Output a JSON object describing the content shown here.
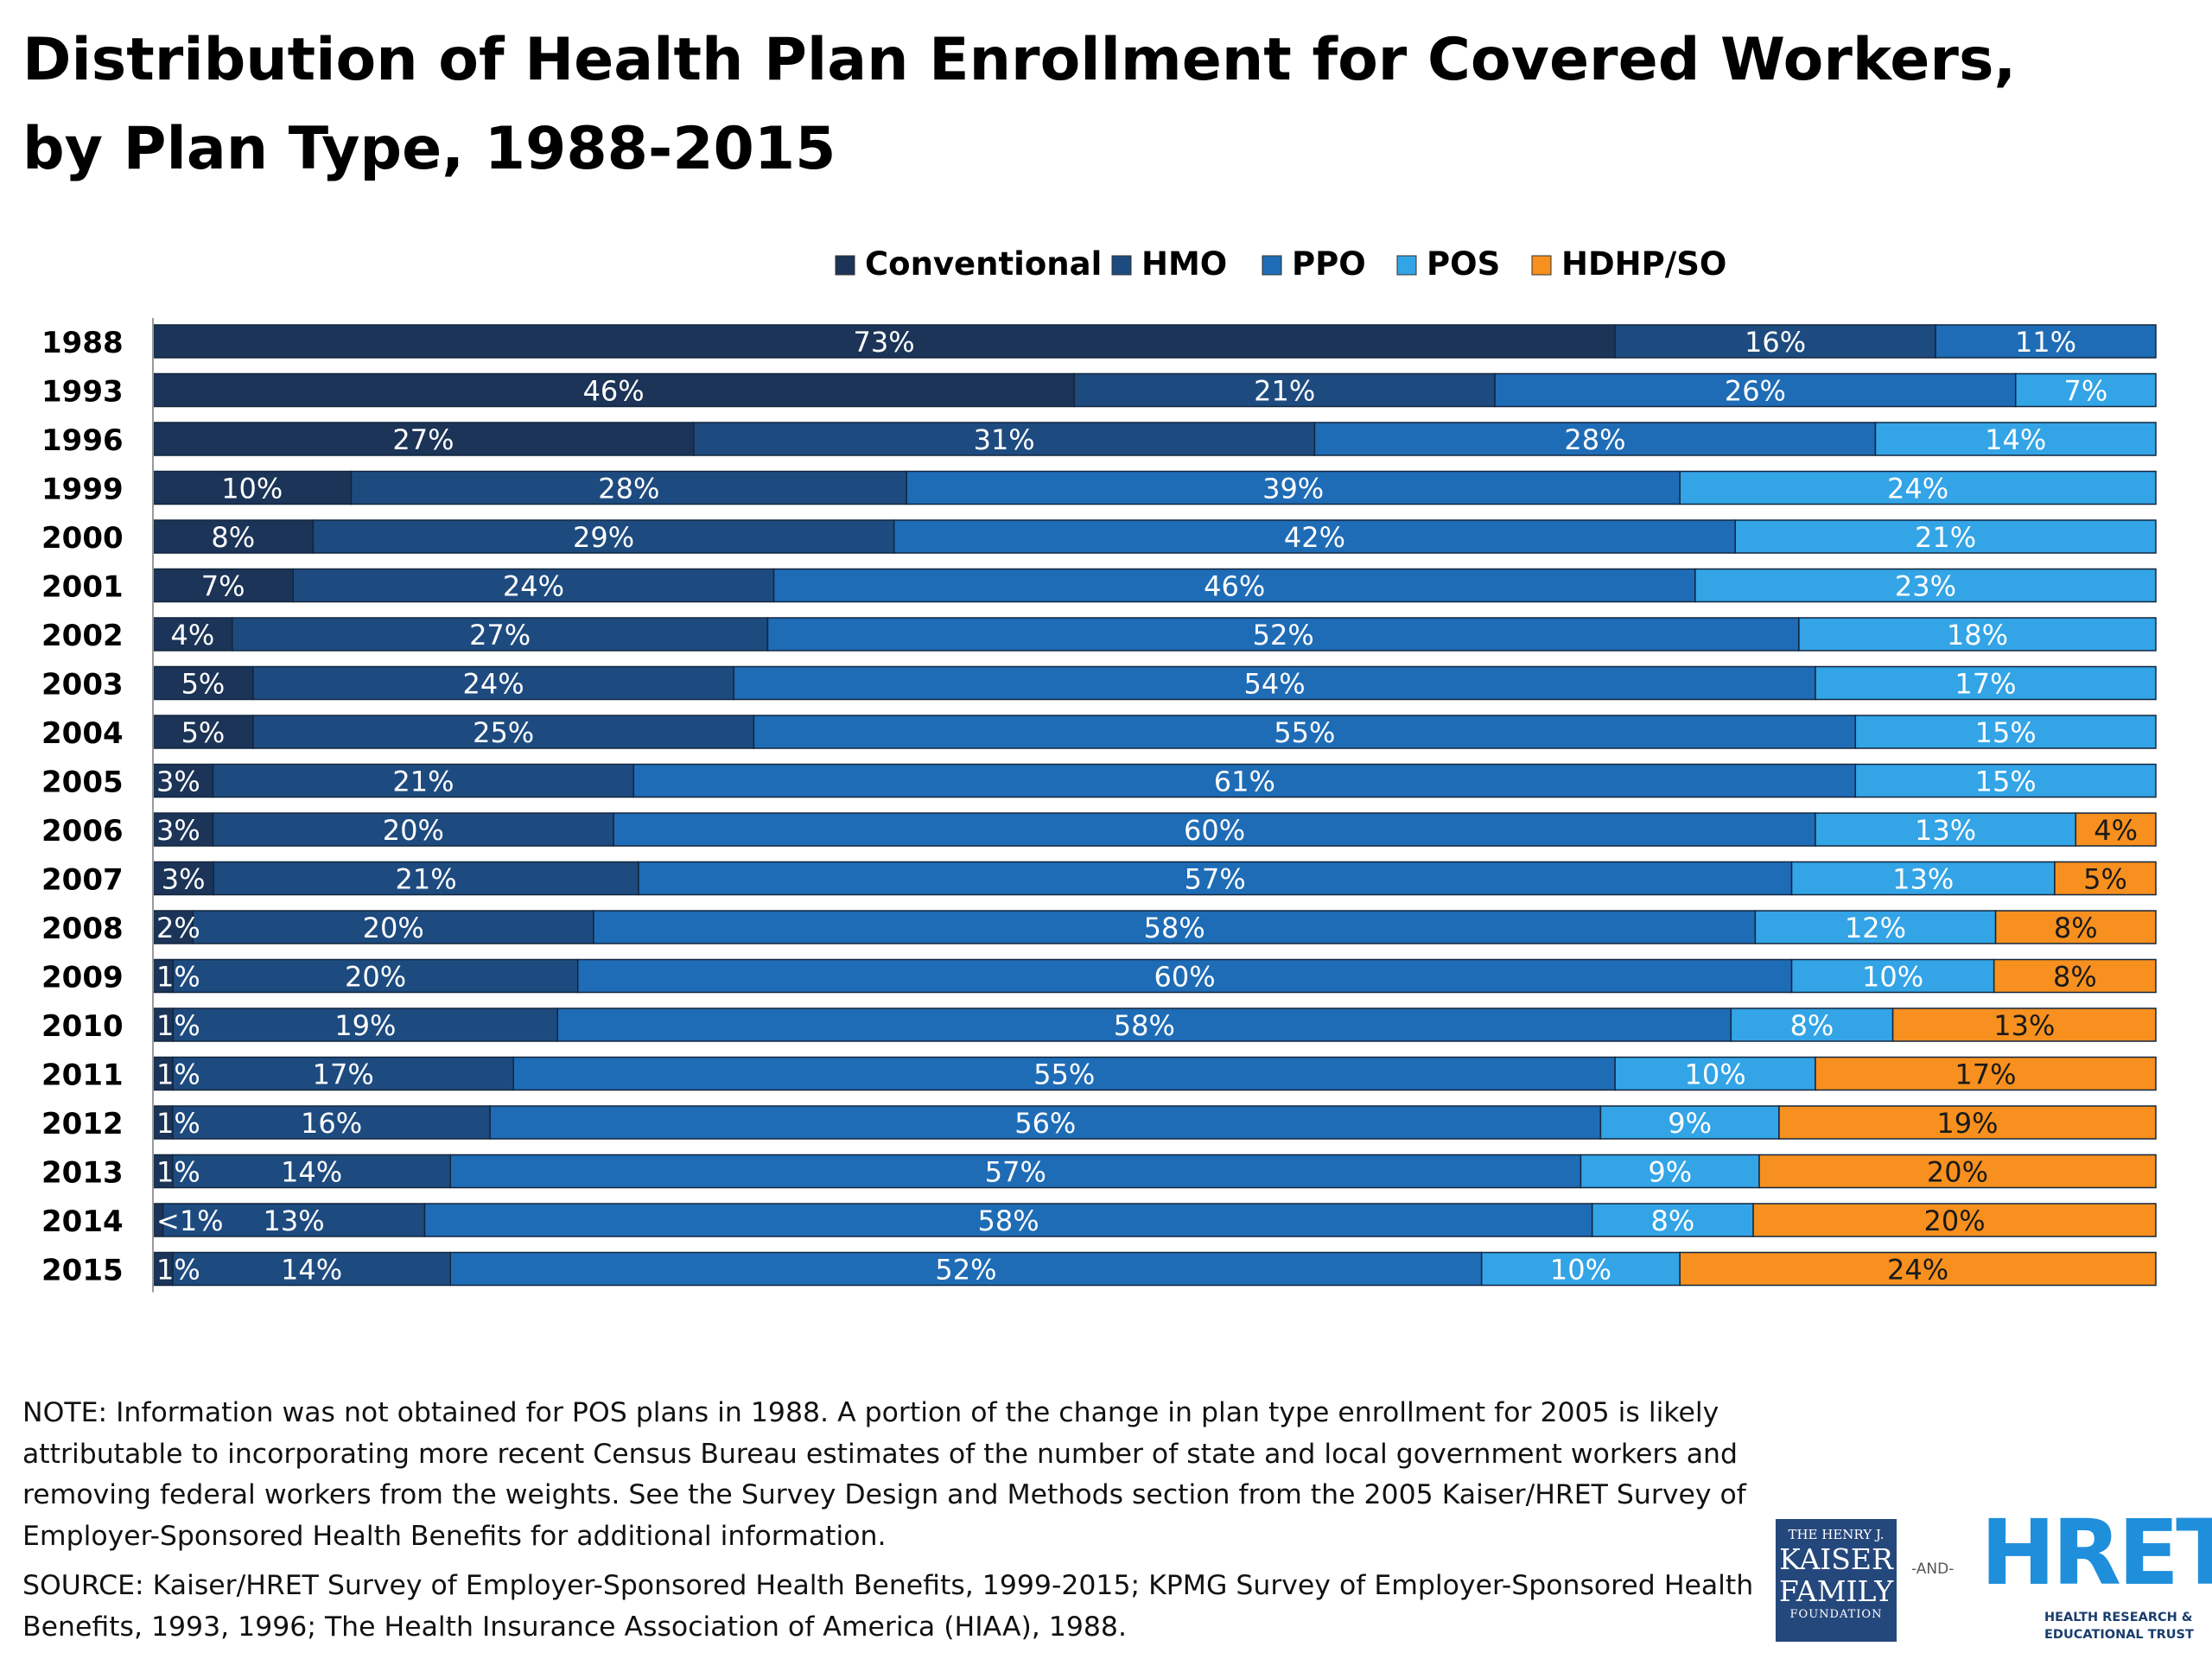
{
  "title": "Distribution of Health Plan Enrollment for Covered Workers, by Plan Type, 1988-2015",
  "chart_data": {
    "type": "bar",
    "orientation": "horizontal",
    "stacked": true,
    "title": "Distribution of Health Plan Enrollment for Covered Workers, by Plan Type, 1988-2015",
    "legend_position": "top",
    "categories": [
      "1988",
      "1993",
      "1996",
      "1999",
      "2000",
      "2001",
      "2002",
      "2003",
      "2004",
      "2005",
      "2006",
      "2007",
      "2008",
      "2009",
      "2010",
      "2011",
      "2012",
      "2013",
      "2014",
      "2015"
    ],
    "xlim": [
      0,
      100
    ],
    "colors": {
      "Conventional": "#1b3457",
      "HMO": "#1e4b7f",
      "PPO": "#1f6cb6",
      "POS": "#33a4e6",
      "HDHP/SO": "#f7901e"
    },
    "series": [
      {
        "name": "Conventional",
        "values": [
          73,
          46,
          27,
          10,
          8,
          7,
          4,
          5,
          5,
          3,
          3,
          3,
          2,
          1,
          1,
          1,
          1,
          1,
          0.5,
          1
        ],
        "labels": [
          "73%",
          "46%",
          "27%",
          "10%",
          "8%",
          "7%",
          "4%",
          "5%",
          "5%",
          "3%",
          "3%",
          "3%",
          "2%",
          "1%",
          "1%",
          "1%",
          "1%",
          "1%",
          "<1%",
          "1%"
        ]
      },
      {
        "name": "HMO",
        "values": [
          16,
          21,
          31,
          28,
          29,
          24,
          27,
          24,
          25,
          21,
          20,
          21,
          20,
          20,
          19,
          17,
          16,
          14,
          13,
          14
        ],
        "labels": [
          "16%",
          "21%",
          "31%",
          "28%",
          "29%",
          "24%",
          "27%",
          "24%",
          "25%",
          "21%",
          "20%",
          "21%",
          "20%",
          "20%",
          "19%",
          "17%",
          "16%",
          "14%",
          "13%",
          "14%"
        ]
      },
      {
        "name": "PPO",
        "values": [
          11,
          26,
          28,
          39,
          42,
          46,
          52,
          54,
          55,
          61,
          60,
          57,
          58,
          60,
          58,
          55,
          56,
          57,
          58,
          52
        ],
        "labels": [
          "11%",
          "26%",
          "28%",
          "39%",
          "42%",
          "46%",
          "52%",
          "54%",
          "55%",
          "61%",
          "60%",
          "57%",
          "58%",
          "60%",
          "58%",
          "55%",
          "56%",
          "57%",
          "58%",
          "52%"
        ]
      },
      {
        "name": "POS",
        "values": [
          0,
          7,
          14,
          24,
          21,
          23,
          18,
          17,
          15,
          15,
          13,
          13,
          12,
          10,
          8,
          10,
          9,
          9,
          8,
          10
        ],
        "labels": [
          "",
          "7%",
          "14%",
          "24%",
          "21%",
          "23%",
          "18%",
          "17%",
          "15%",
          "15%",
          "13%",
          "13%",
          "12%",
          "10%",
          "8%",
          "10%",
          "9%",
          "9%",
          "8%",
          "10%"
        ]
      },
      {
        "name": "HDHP/SO",
        "values": [
          0,
          0,
          0,
          0,
          0,
          0,
          0,
          0,
          0,
          0,
          4,
          5,
          8,
          8,
          13,
          17,
          19,
          20,
          20,
          24
        ],
        "labels": [
          "",
          "",
          "",
          "",
          "",
          "",
          "",
          "",
          "",
          "",
          "4%",
          "5%",
          "8%",
          "8%",
          "13%",
          "17%",
          "19%",
          "20%",
          "20%",
          "24%"
        ]
      }
    ]
  },
  "note": "NOTE: Information was not obtained for POS plans in 1988.  A portion of the change in plan type enrollment for 2005 is likely attributable to incorporating more recent Census Bureau estimates of the number of state and local government workers and removing federal workers from the weights.  See the Survey Design and Methods section from the 2005 Kaiser/HRET Survey of Employer-Sponsored Health Benefits for additional information.",
  "source": "SOURCE:  Kaiser/HRET Survey of Employer-Sponsored Health Benefits, 1999-2015; KPMG Survey of Employer-Sponsored Health Benefits, 1993, 1996; The Health Insurance Association of America (HIAA), 1988.",
  "logos": {
    "kff": {
      "line1": "THE HENRY J.",
      "line2": "KAISER",
      "line3": "FAMILY",
      "line4": "FOUNDATION"
    },
    "and": "-AND-",
    "hret": {
      "big": "HRET",
      "sub1": "HEALTH RESEARCH &",
      "sub2": "EDUCATIONAL TRUST"
    }
  }
}
